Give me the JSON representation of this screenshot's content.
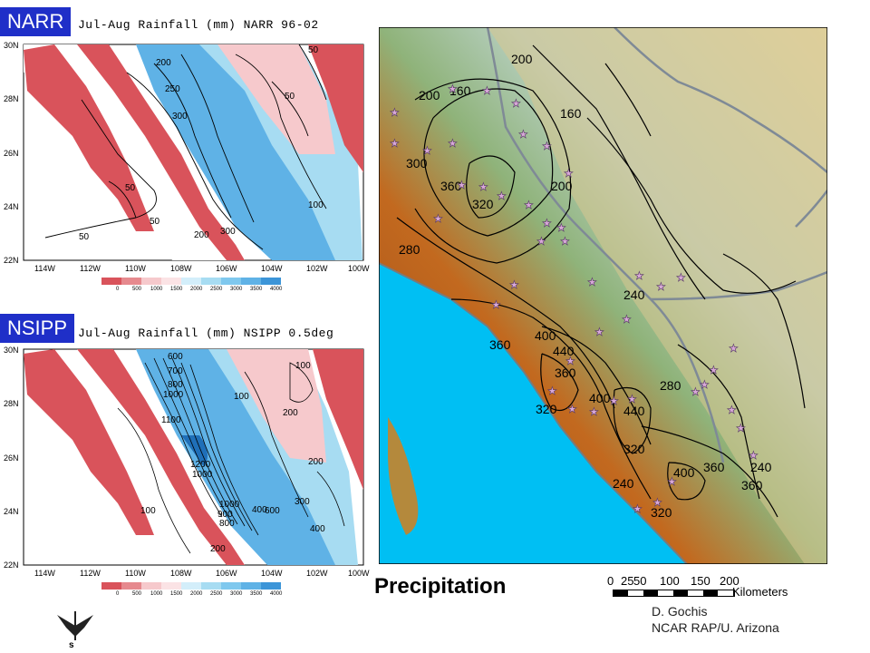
{
  "top_panel": {
    "tag": "NARR",
    "title": "Jul-Aug Rainfall (mm) NARR 96-02",
    "lat_labels": [
      "30N",
      "28N",
      "26N",
      "24N",
      "22N"
    ],
    "lon_labels": [
      "114W",
      "112W",
      "110W",
      "108W",
      "106W",
      "104W",
      "102W",
      "100W"
    ],
    "contour_labels": [
      "50",
      "200",
      "250",
      "300",
      "50",
      "50",
      "50",
      "100",
      "300",
      "200",
      "50"
    ],
    "colorbar_labels": [
      "0",
      "500",
      "1000",
      "1500",
      "2000",
      "2500",
      "3000",
      "3500",
      "4000"
    ]
  },
  "bottom_panel": {
    "tag": "NSIPP",
    "title": "Jul-Aug Rainfall (mm) NSIPP 0.5deg",
    "lat_labels": [
      "30N",
      "28N",
      "26N",
      "24N",
      "22N"
    ],
    "lon_labels": [
      "114W",
      "112W",
      "110W",
      "108W",
      "106W",
      "104W",
      "102W",
      "100W"
    ],
    "contour_labels": [
      "600",
      "700",
      "800",
      "1000",
      "1100",
      "1200",
      "1000",
      "1000",
      "900",
      "800",
      "600",
      "400",
      "100",
      "100",
      "200",
      "200",
      "300",
      "400",
      "200",
      "100"
    ],
    "colorbar_labels": [
      "0",
      "500",
      "1000",
      "1500",
      "2000",
      "2500",
      "3000",
      "3500",
      "4000"
    ]
  },
  "right_map": {
    "title": "Precipitation",
    "contour_labels": [
      "160",
      "200",
      "200",
      "160",
      "300",
      "360",
      "320",
      "200",
      "280",
      "240",
      "400",
      "360",
      "440",
      "360",
      "320",
      "400",
      "440",
      "320",
      "280",
      "360",
      "240",
      "240",
      "400",
      "320",
      "360"
    ],
    "scale_labels": [
      "0",
      "25",
      "50",
      "100",
      "150",
      "200"
    ],
    "scale_unit": "Kilometers",
    "credit_line1": "D. Gochis",
    "credit_line2": "NCAR RAP/U. Arizona"
  },
  "colors": {
    "tag_bg": "#1f2fc8",
    "dry_red": "#d9535b",
    "light_pink": "#f6c9cc",
    "light_blue": "#a7dcf2",
    "mid_blue": "#5fb2e6",
    "ocean": "#00bff3",
    "lowland": "#b3551c",
    "highland": "#cfd8b4"
  }
}
